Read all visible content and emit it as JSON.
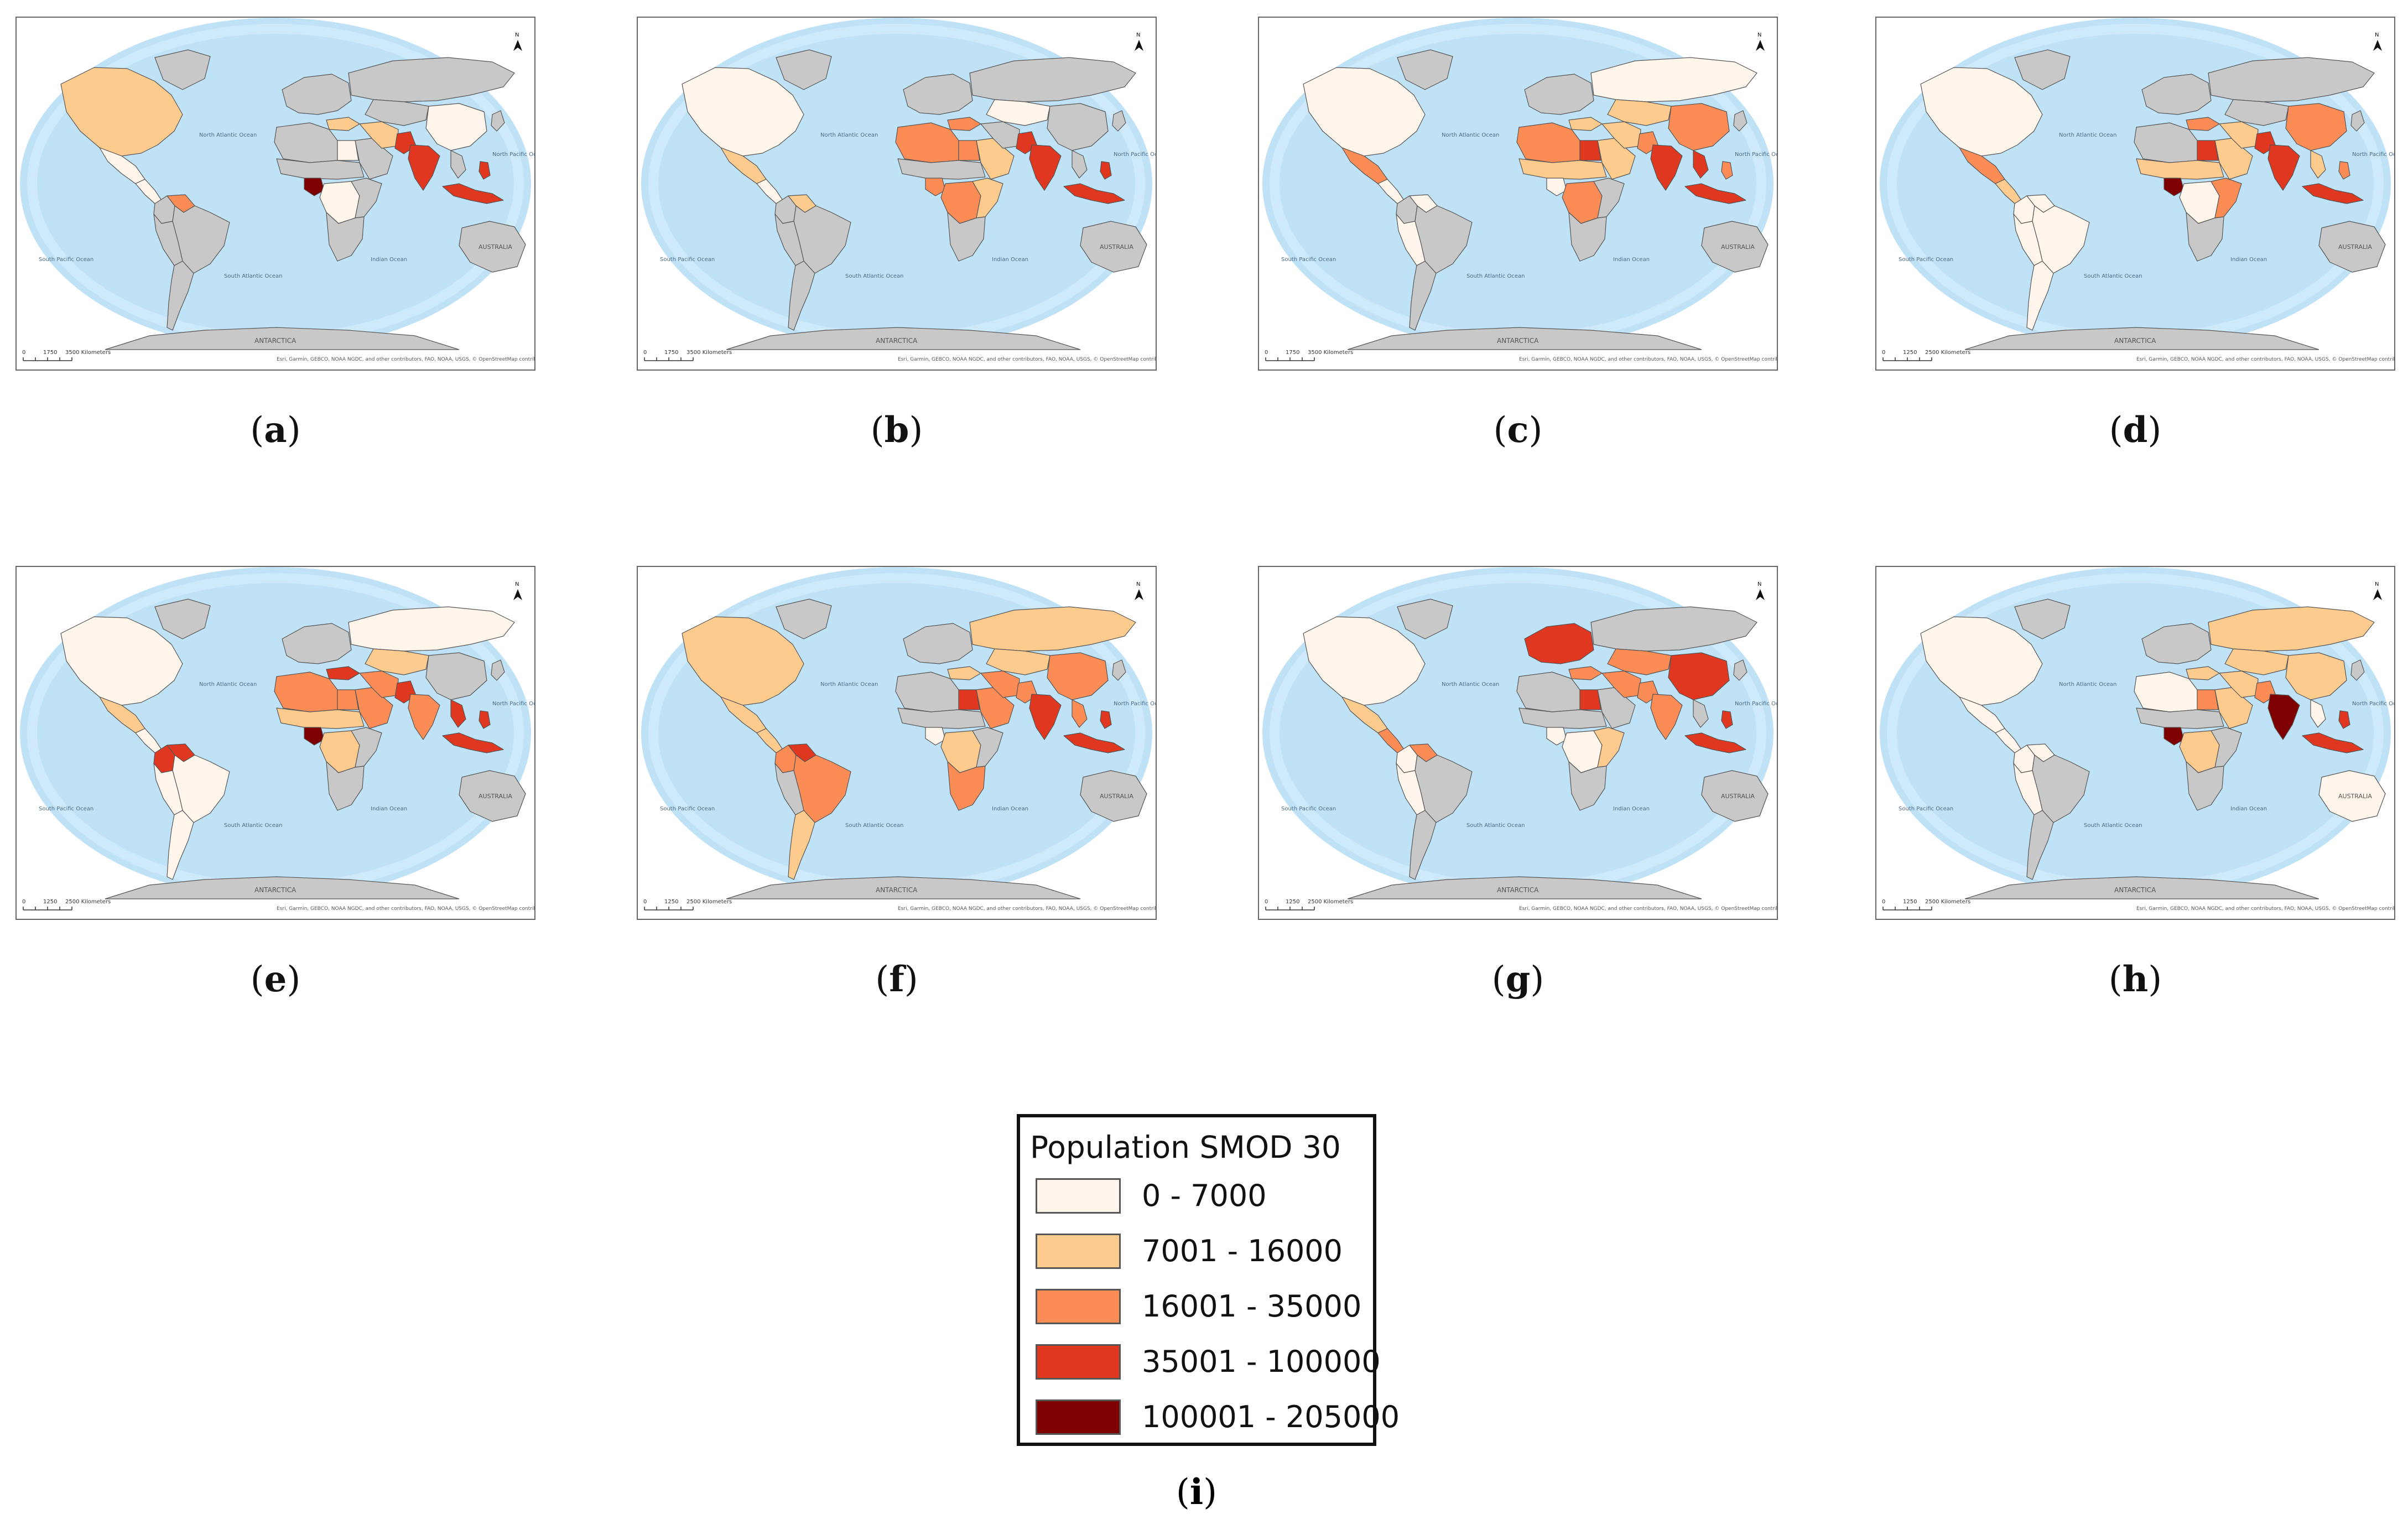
{
  "colors": {
    "ocean": "#bfe2f7",
    "land_nodata": "#c8c8c8",
    "border": "#555555",
    "classes": [
      "#fff5eb",
      "#fdcb8e",
      "#fb8c55",
      "#df3720",
      "#7f0000"
    ]
  },
  "legend": {
    "title": "Population SMOD 30",
    "caption_letter": "i",
    "classes": [
      {
        "label": "0 - 7000",
        "color": "#fff5eb"
      },
      {
        "label": "7001 - 16000",
        "color": "#fdcb8e"
      },
      {
        "label": "16001 - 35000",
        "color": "#fb8c55"
      },
      {
        "label": "35001 - 100000",
        "color": "#df3720"
      },
      {
        "label": "100001 - 205000",
        "color": "#7f0000"
      }
    ]
  },
  "map_text": {
    "scale_zero": "0",
    "scale_unit": "Kilometers",
    "north_label": "N",
    "antarctica": "ANTARCTICA",
    "australia": "AUSTRALIA",
    "ocean_labels": [
      "North Atlantic Ocean",
      "South Atlantic Ocean",
      "Indian Ocean",
      "North Pacific Ocean",
      "South Pacific Ocean"
    ],
    "attribution": "Esri, Garmin, GEBCO, NOAA NGDC, and other contributors, FAO, NOAA, USGS, © OpenStreetMap contributors, and the GIS User Community"
  },
  "panels": [
    {
      "letter": "a",
      "scale_mid": "1750",
      "scale_end": "3500",
      "countries": {
        "north_america": 1,
        "mexico": 0,
        "central_america": 0,
        "colombia": -1,
        "venezuela": 2,
        "brazil": -1,
        "southern_sa": -1,
        "western_sa": -1,
        "europe": -1,
        "russia": -1,
        "turkey": 1,
        "north_africa": -1,
        "egypt": 0,
        "sahel": -1,
        "nigeria": 4,
        "central_africa": 0,
        "east_africa": -1,
        "southern_africa": -1,
        "arabia": -1,
        "iran": 1,
        "pakistan": 3,
        "central_asia": -1,
        "india": 3,
        "china": 0,
        "se_asia": -1,
        "indonesia": 3,
        "philippines": 3,
        "japan": -1,
        "australia": -1
      }
    },
    {
      "letter": "b",
      "scale_mid": "1750",
      "scale_end": "3500",
      "countries": {
        "north_america": 0,
        "mexico": 1,
        "central_america": 0,
        "colombia": -1,
        "venezuela": 1,
        "brazil": -1,
        "southern_sa": -1,
        "western_sa": -1,
        "europe": -1,
        "russia": -1,
        "turkey": 2,
        "north_africa": 2,
        "egypt": 2,
        "sahel": -1,
        "nigeria": 2,
        "central_africa": 2,
        "east_africa": 1,
        "southern_africa": -1,
        "arabia": 1,
        "iran": -1,
        "pakistan": 3,
        "central_asia": 0,
        "india": 3,
        "china": -1,
        "se_asia": -1,
        "indonesia": 3,
        "philippines": 3,
        "japan": -1,
        "australia": -1
      }
    },
    {
      "letter": "c",
      "scale_mid": "1750",
      "scale_end": "3500",
      "countries": {
        "north_america": 0,
        "mexico": 2,
        "central_america": 0,
        "colombia": -1,
        "venezuela": 0,
        "brazil": -1,
        "southern_sa": -1,
        "western_sa": 0,
        "europe": -1,
        "russia": 0,
        "turkey": 1,
        "north_africa": 2,
        "egypt": 3,
        "sahel": 1,
        "nigeria": 0,
        "central_africa": 2,
        "east_africa": -1,
        "southern_africa": -1,
        "arabia": 1,
        "iran": 1,
        "pakistan": 2,
        "central_asia": 1,
        "india": 3,
        "china": 2,
        "se_asia": 3,
        "indonesia": 3,
        "philippines": 2,
        "japan": -1,
        "australia": -1
      }
    },
    {
      "letter": "d",
      "scale_mid": "1250",
      "scale_end": "2500",
      "countries": {
        "north_america": 0,
        "mexico": 2,
        "central_america": 1,
        "colombia": 0,
        "venezuela": 0,
        "brazil": 0,
        "southern_sa": 0,
        "western_sa": 0,
        "europe": -1,
        "russia": -1,
        "turkey": 2,
        "north_africa": -1,
        "egypt": 3,
        "sahel": 1,
        "nigeria": 4,
        "central_africa": 0,
        "east_africa": 2,
        "southern_africa": -1,
        "arabia": 1,
        "iran": 1,
        "pakistan": 3,
        "central_asia": -1,
        "india": 3,
        "china": 2,
        "se_asia": 1,
        "indonesia": 3,
        "philippines": 2,
        "japan": -1,
        "australia": -1
      }
    },
    {
      "letter": "e",
      "scale_mid": "1250",
      "scale_end": "2500",
      "countries": {
        "north_america": 0,
        "mexico": 1,
        "central_america": 0,
        "colombia": 3,
        "venezuela": 3,
        "brazil": 0,
        "southern_sa": 0,
        "western_sa": 0,
        "europe": -1,
        "russia": 0,
        "turkey": 3,
        "north_africa": 2,
        "egypt": 2,
        "sahel": 1,
        "nigeria": 4,
        "central_africa": 1,
        "east_africa": -1,
        "southern_africa": -1,
        "arabia": 2,
        "iran": 2,
        "pakistan": 3,
        "central_asia": 1,
        "india": 2,
        "china": -1,
        "se_asia": 3,
        "indonesia": 3,
        "philippines": 3,
        "japan": -1,
        "australia": -1
      }
    },
    {
      "letter": "f",
      "scale_mid": "1250",
      "scale_end": "2500",
      "countries": {
        "north_america": 1,
        "mexico": 1,
        "central_america": 1,
        "colombia": 2,
        "venezuela": 3,
        "brazil": 2,
        "southern_sa": 1,
        "western_sa": -1,
        "europe": -1,
        "russia": 1,
        "turkey": 1,
        "north_africa": -1,
        "egypt": 3,
        "sahel": -1,
        "nigeria": 0,
        "central_africa": 1,
        "east_africa": -1,
        "southern_africa": 2,
        "arabia": 2,
        "iran": 2,
        "pakistan": 2,
        "central_asia": 1,
        "india": 3,
        "china": 2,
        "se_asia": 2,
        "indonesia": 3,
        "philippines": 3,
        "japan": -1,
        "australia": -1
      }
    },
    {
      "letter": "g",
      "scale_mid": "1250",
      "scale_end": "2500",
      "countries": {
        "north_america": 0,
        "mexico": 1,
        "central_america": 2,
        "colombia": 0,
        "venezuela": 2,
        "brazil": -1,
        "southern_sa": -1,
        "western_sa": 0,
        "europe": 3,
        "russia": -1,
        "turkey": 2,
        "north_africa": -1,
        "egypt": 3,
        "sahel": -1,
        "nigeria": 0,
        "central_africa": 0,
        "east_africa": 1,
        "southern_africa": -1,
        "arabia": -1,
        "iran": 2,
        "pakistan": 2,
        "central_asia": 2,
        "india": 2,
        "china": 3,
        "se_asia": -1,
        "indonesia": 3,
        "philippines": 3,
        "japan": -1,
        "australia": -1
      }
    },
    {
      "letter": "h",
      "scale_mid": "1250",
      "scale_end": "2500",
      "countries": {
        "north_america": 0,
        "mexico": 0,
        "central_america": 0,
        "colombia": 0,
        "venezuela": 0,
        "brazil": -1,
        "southern_sa": -1,
        "western_sa": 0,
        "europe": -1,
        "russia": 1,
        "turkey": 1,
        "north_africa": 0,
        "egypt": 2,
        "sahel": -1,
        "nigeria": 4,
        "central_africa": 1,
        "east_africa": -1,
        "southern_africa": -1,
        "arabia": 1,
        "iran": 1,
        "pakistan": 2,
        "central_asia": 1,
        "india": 4,
        "china": 1,
        "se_asia": 0,
        "indonesia": 3,
        "philippines": 3,
        "japan": -1,
        "australia": 0
      }
    }
  ]
}
